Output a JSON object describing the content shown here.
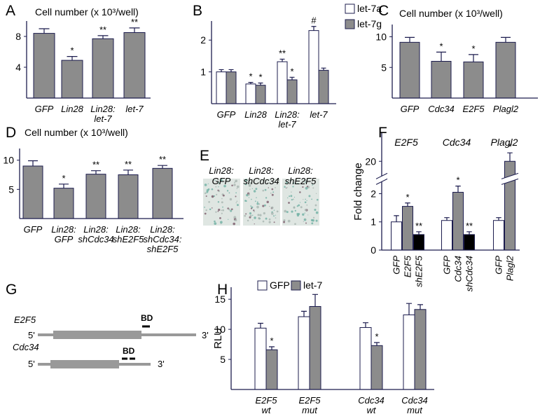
{
  "chart_data": [
    {
      "type": "bar",
      "panel": "A",
      "title": "Cell number (x 10³/well)",
      "categories": [
        "GFP",
        "Lin28",
        [
          "Lin28:",
          "let-7"
        ],
        "let-7"
      ],
      "values": [
        8.4,
        4.9,
        7.7,
        8.5
      ],
      "errors": [
        0.6,
        0.5,
        0.4,
        0.6
      ],
      "annotations": [
        null,
        "*",
        "**",
        "**"
      ],
      "color": "#8c8c8c",
      "ylim": [
        0,
        10
      ],
      "yticks": [
        4,
        8
      ]
    },
    {
      "type": "bar",
      "panel": "B",
      "categories": [
        "GFP",
        "Lin28",
        [
          "Lin28:",
          "let-7"
        ],
        "let-7"
      ],
      "series": [
        {
          "name": "let-7a",
          "color": "#ffffff",
          "values": [
            1.0,
            0.62,
            1.32,
            2.3
          ],
          "errors": [
            0.07,
            0.05,
            0.08,
            0.13
          ],
          "annotations": [
            null,
            "*",
            "**",
            "#"
          ]
        },
        {
          "name": "let-7g",
          "color": "#8c8c8c",
          "values": [
            1.0,
            0.58,
            0.75,
            1.05
          ],
          "errors": [
            0.07,
            0.07,
            0.08,
            0.07
          ],
          "annotations": [
            null,
            "*",
            "*",
            null
          ]
        }
      ],
      "legend": "right",
      "ylim": [
        0,
        2.6
      ],
      "yticks": [
        1,
        2
      ]
    },
    {
      "type": "bar",
      "panel": "C",
      "title": "Cell number (x 10³/well)",
      "categories": [
        "GFP",
        "Cdc34",
        "E2F5",
        "Plagl2"
      ],
      "values": [
        9.1,
        6.0,
        5.9,
        9.1
      ],
      "errors": [
        0.8,
        1.5,
        1.2,
        0.8
      ],
      "annotations": [
        null,
        "*",
        "*",
        null
      ],
      "color": "#8c8c8c",
      "ylim": [
        0,
        12
      ],
      "yticks": [
        5,
        10
      ]
    },
    {
      "type": "bar",
      "panel": "D",
      "title": "Cell number (x 10³/well)",
      "categories": [
        "GFP",
        [
          "Lin28:",
          "GFP"
        ],
        [
          "Lin28:",
          "shCdc34"
        ],
        [
          "Lin28:",
          "shE2F5"
        ],
        [
          "Lin28:",
          "shCdc34:",
          "shE2F5"
        ]
      ],
      "values": [
        9.0,
        5.2,
        7.6,
        7.5,
        8.6
      ],
      "errors": [
        0.9,
        0.7,
        0.6,
        0.8,
        0.5
      ],
      "annotations": [
        null,
        "*",
        "**",
        "**",
        "**"
      ],
      "color": "#8c8c8c",
      "ylim": [
        0,
        12
      ],
      "yticks": [
        5,
        10
      ]
    },
    {
      "type": "bar",
      "panel": "F",
      "ylabel": "Fold change",
      "groups": [
        "E2F5",
        "Cdc34",
        "Plagl2"
      ],
      "categories": [
        "GFP",
        "E2F5",
        "shE2F5",
        "GFP",
        "Cdc34",
        "shCdc34",
        "GFP",
        "Plagl2"
      ],
      "values": [
        1.0,
        1.55,
        0.55,
        1.05,
        2.05,
        0.55,
        1.05,
        20
      ],
      "errors": [
        0.22,
        0.12,
        0.1,
        0.1,
        0.22,
        0.1,
        0.1,
        0.3
      ],
      "annotations": [
        null,
        "*",
        "**",
        null,
        "*",
        "**",
        null,
        "*"
      ],
      "colors": [
        "#ffffff",
        "#8c8c8c",
        "#000000",
        "#ffffff",
        "#8c8c8c",
        "#000000",
        "#ffffff",
        "#8c8c8c"
      ],
      "rotate_labels": true,
      "ylim": [
        0,
        21
      ],
      "ybreak": [
        2.4,
        19.6
      ],
      "yticks": [
        0,
        1,
        2,
        20
      ]
    },
    {
      "type": "bar",
      "panel": "H",
      "ylabel": "RLU",
      "categories": [
        [
          "E2F5",
          "wt"
        ],
        [
          "E2F5",
          "mut"
        ],
        [
          "Cdc34",
          "wt"
        ],
        [
          "Cdc34",
          "mut"
        ]
      ],
      "series": [
        {
          "name": "GFP",
          "color": "#ffffff",
          "values": [
            10.2,
            12.1,
            10.3,
            12.4
          ],
          "errors": [
            0.8,
            0.9,
            0.8,
            1.9
          ],
          "annotations": [
            null,
            null,
            null,
            null
          ]
        },
        {
          "name": "let-7",
          "color": "#8c8c8c",
          "values": [
            6.6,
            13.8,
            7.3,
            13.3
          ],
          "errors": [
            0.5,
            2.0,
            0.5,
            0.8
          ],
          "annotations": [
            "*",
            null,
            "*",
            null
          ]
        }
      ],
      "legend": "top",
      "ylim": [
        0,
        17
      ],
      "yticks": [
        5,
        10,
        15
      ]
    }
  ],
  "panel_e": {
    "panel": "E",
    "labels": [
      [
        "Lin28:",
        "GFP"
      ],
      [
        "Lin28:",
        "shCdc34"
      ],
      [
        "Lin28:",
        "shE2F5"
      ]
    ]
  },
  "panel_g": {
    "panel": "G",
    "genes": [
      {
        "name": "E2F5",
        "five": "5'",
        "three": "3'",
        "site": "BD"
      },
      {
        "name": "Cdc34",
        "five": "5'",
        "three": "3'",
        "site": "BD"
      }
    ]
  }
}
